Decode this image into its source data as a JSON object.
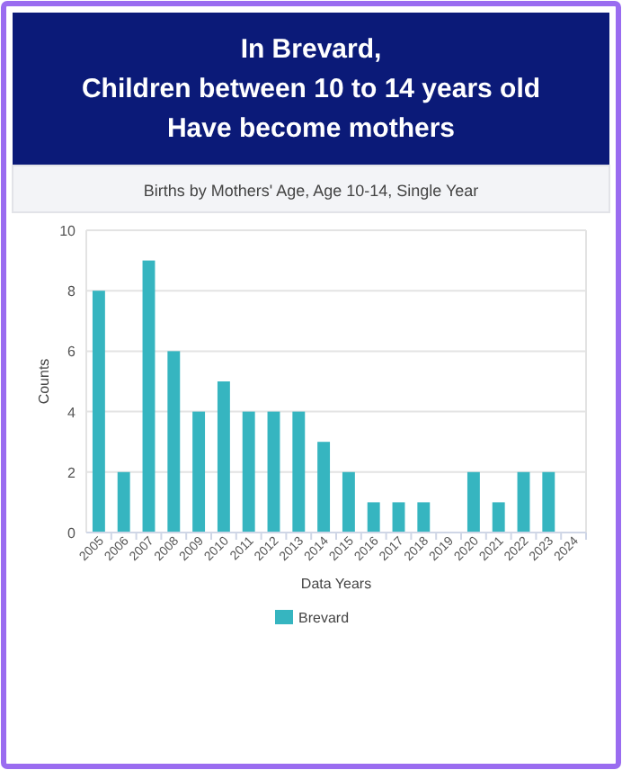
{
  "chart_data": {
    "type": "bar",
    "title": "In Brevard,\nChildren between 10 to 14 years old\nHave become mothers",
    "subtitle": "Births by Mothers' Age, Age 10-14, Single Year",
    "xlabel": "Data Years",
    "ylabel": "Counts",
    "categories": [
      "2005",
      "2006",
      "2007",
      "2008",
      "2009",
      "2010",
      "2011",
      "2012",
      "2013",
      "2014",
      "2015",
      "2016",
      "2017",
      "2018",
      "2019",
      "2020",
      "2021",
      "2022",
      "2023",
      "2024"
    ],
    "series": [
      {
        "name": "Brevard",
        "color": "#36b5c0",
        "values": [
          8,
          2,
          9,
          6,
          4,
          5,
          4,
          4,
          4,
          3,
          2,
          1,
          1,
          1,
          0,
          2,
          1,
          2,
          2,
          0
        ]
      }
    ],
    "ylim": [
      0,
      10
    ],
    "yticks": [
      0,
      2,
      4,
      6,
      8,
      10
    ],
    "grid": "y",
    "legend": "bottom"
  }
}
